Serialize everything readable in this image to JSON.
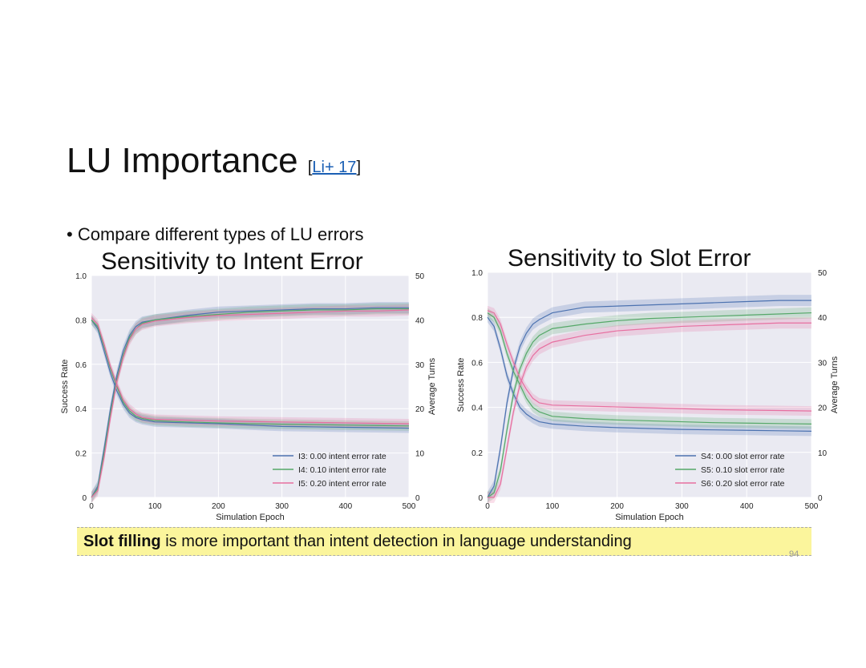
{
  "slide": {
    "title": "LU Importance",
    "cite_open": "[",
    "cite_link": "Li+ 17",
    "cite_close": "]",
    "bullet": "Compare different types of LU errors",
    "note_bold": "Slot filling",
    "note_rest": " is more important than intent detection in language understanding",
    "page_number": "94"
  },
  "chart_data": [
    {
      "type": "line",
      "title": "Sensitivity to Intent Error",
      "xlabel": "Simulation Epoch",
      "ylabel": "Success Rate",
      "y2label": "Average Turns",
      "xlim": [
        0,
        500
      ],
      "ylim": [
        0,
        1.0
      ],
      "y2lim": [
        0,
        50
      ],
      "xticks": [
        "0",
        "100",
        "200",
        "300",
        "400",
        "500"
      ],
      "yticks": [
        "0",
        "0.2",
        "0.4",
        "0.6",
        "0.8",
        "1.0"
      ],
      "y2ticks": [
        "0",
        "10",
        "20",
        "30",
        "40",
        "50"
      ],
      "grid": true,
      "legend_position": "lower-right",
      "series": [
        {
          "name": "I3: 0.00 intent error rate",
          "color": "#4c72b0",
          "success": [
            [
              0,
              0.0
            ],
            [
              10,
              0.05
            ],
            [
              20,
              0.22
            ],
            [
              30,
              0.4
            ],
            [
              40,
              0.55
            ],
            [
              50,
              0.66
            ],
            [
              60,
              0.73
            ],
            [
              70,
              0.77
            ],
            [
              80,
              0.79
            ],
            [
              100,
              0.8
            ],
            [
              150,
              0.82
            ],
            [
              200,
              0.835
            ],
            [
              250,
              0.84
            ],
            [
              300,
              0.845
            ],
            [
              350,
              0.85
            ],
            [
              400,
              0.85
            ],
            [
              450,
              0.855
            ],
            [
              500,
              0.855
            ]
          ],
          "turns": [
            [
              0,
              40
            ],
            [
              10,
              38
            ],
            [
              20,
              33
            ],
            [
              30,
              28
            ],
            [
              40,
              24
            ],
            [
              50,
              21
            ],
            [
              60,
              19
            ],
            [
              70,
              18
            ],
            [
              80,
              17.5
            ],
            [
              100,
              17
            ],
            [
              150,
              16.8
            ],
            [
              200,
              16.6
            ],
            [
              250,
              16.3
            ],
            [
              300,
              16
            ],
            [
              350,
              15.9
            ],
            [
              400,
              15.8
            ],
            [
              450,
              15.7
            ],
            [
              500,
              15.6
            ]
          ]
        },
        {
          "name": "I4: 0.10 intent error rate",
          "color": "#55a868",
          "success": [
            [
              0,
              0.0
            ],
            [
              10,
              0.04
            ],
            [
              20,
              0.2
            ],
            [
              30,
              0.38
            ],
            [
              40,
              0.53
            ],
            [
              50,
              0.64
            ],
            [
              60,
              0.72
            ],
            [
              70,
              0.76
            ],
            [
              80,
              0.785
            ],
            [
              100,
              0.8
            ],
            [
              150,
              0.815
            ],
            [
              200,
              0.825
            ],
            [
              250,
              0.835
            ],
            [
              300,
              0.84
            ],
            [
              350,
              0.845
            ],
            [
              400,
              0.845
            ],
            [
              450,
              0.85
            ],
            [
              500,
              0.85
            ]
          ],
          "turns": [
            [
              0,
              40
            ],
            [
              10,
              38.5
            ],
            [
              20,
              34
            ],
            [
              30,
              29
            ],
            [
              40,
              25
            ],
            [
              50,
              21.5
            ],
            [
              60,
              19.5
            ],
            [
              70,
              18.3
            ],
            [
              80,
              17.8
            ],
            [
              100,
              17.3
            ],
            [
              150,
              17
            ],
            [
              200,
              16.8
            ],
            [
              250,
              16.6
            ],
            [
              300,
              16.5
            ],
            [
              350,
              16.4
            ],
            [
              400,
              16.3
            ],
            [
              450,
              16.2
            ],
            [
              500,
              16.1
            ]
          ]
        },
        {
          "name": "I5: 0.20 intent error rate",
          "color": "#e76fa0",
          "success": [
            [
              0,
              0.0
            ],
            [
              10,
              0.03
            ],
            [
              20,
              0.18
            ],
            [
              30,
              0.36
            ],
            [
              40,
              0.52
            ],
            [
              50,
              0.63
            ],
            [
              60,
              0.71
            ],
            [
              70,
              0.76
            ],
            [
              80,
              0.78
            ],
            [
              100,
              0.795
            ],
            [
              150,
              0.81
            ],
            [
              200,
              0.82
            ],
            [
              250,
              0.825
            ],
            [
              300,
              0.83
            ],
            [
              350,
              0.835
            ],
            [
              400,
              0.84
            ],
            [
              450,
              0.84
            ],
            [
              500,
              0.845
            ]
          ],
          "turns": [
            [
              0,
              40.5
            ],
            [
              10,
              39
            ],
            [
              20,
              34.5
            ],
            [
              30,
              29.5
            ],
            [
              40,
              25.5
            ],
            [
              50,
              22
            ],
            [
              60,
              20
            ],
            [
              70,
              18.8
            ],
            [
              80,
              18
            ],
            [
              100,
              17.6
            ],
            [
              150,
              17.4
            ],
            [
              200,
              17.2
            ],
            [
              250,
              17.1
            ],
            [
              300,
              17
            ],
            [
              350,
              16.9
            ],
            [
              400,
              16.8
            ],
            [
              450,
              16.7
            ],
            [
              500,
              16.6
            ]
          ]
        }
      ]
    },
    {
      "type": "line",
      "title": "Sensitivity to Slot Error",
      "xlabel": "Simulation Epoch",
      "ylabel": "Success Rate",
      "y2label": "Average Turns",
      "xlim": [
        0,
        500
      ],
      "ylim": [
        0,
        1.0
      ],
      "y2lim": [
        0,
        50
      ],
      "xticks": [
        "0",
        "100",
        "200",
        "300",
        "400",
        "500"
      ],
      "yticks": [
        "0",
        "0.2",
        "0.4",
        "0.6",
        "0.8",
        "1.0"
      ],
      "y2ticks": [
        "0",
        "10",
        "20",
        "30",
        "40",
        "50"
      ],
      "grid": true,
      "legend_position": "lower-right",
      "series": [
        {
          "name": "S4: 0.00 slot error rate",
          "color": "#4c72b0",
          "success": [
            [
              0,
              0.0
            ],
            [
              10,
              0.05
            ],
            [
              20,
              0.22
            ],
            [
              30,
              0.42
            ],
            [
              40,
              0.57
            ],
            [
              50,
              0.67
            ],
            [
              60,
              0.73
            ],
            [
              70,
              0.77
            ],
            [
              80,
              0.79
            ],
            [
              100,
              0.82
            ],
            [
              150,
              0.845
            ],
            [
              200,
              0.85
            ],
            [
              250,
              0.855
            ],
            [
              300,
              0.86
            ],
            [
              350,
              0.865
            ],
            [
              400,
              0.87
            ],
            [
              450,
              0.875
            ],
            [
              500,
              0.875
            ]
          ],
          "turns": [
            [
              0,
              40
            ],
            [
              10,
              38
            ],
            [
              20,
              33
            ],
            [
              30,
              27
            ],
            [
              40,
              23
            ],
            [
              50,
              20
            ],
            [
              60,
              18.5
            ],
            [
              70,
              17.5
            ],
            [
              80,
              16.8
            ],
            [
              100,
              16.3
            ],
            [
              150,
              15.8
            ],
            [
              200,
              15.5
            ],
            [
              250,
              15.3
            ],
            [
              300,
              15.1
            ],
            [
              350,
              15
            ],
            [
              400,
              14.9
            ],
            [
              450,
              14.8
            ],
            [
              500,
              14.7
            ]
          ]
        },
        {
          "name": "S5: 0.10 slot error rate",
          "color": "#55a868",
          "success": [
            [
              0,
              0.0
            ],
            [
              10,
              0.02
            ],
            [
              20,
              0.12
            ],
            [
              30,
              0.3
            ],
            [
              40,
              0.46
            ],
            [
              50,
              0.57
            ],
            [
              60,
              0.64
            ],
            [
              70,
              0.69
            ],
            [
              80,
              0.72
            ],
            [
              100,
              0.75
            ],
            [
              150,
              0.77
            ],
            [
              200,
              0.785
            ],
            [
              250,
              0.795
            ],
            [
              300,
              0.8
            ],
            [
              350,
              0.805
            ],
            [
              400,
              0.81
            ],
            [
              450,
              0.815
            ],
            [
              500,
              0.82
            ]
          ],
          "turns": [
            [
              0,
              41
            ],
            [
              10,
              40
            ],
            [
              20,
              37
            ],
            [
              30,
              32
            ],
            [
              40,
              28
            ],
            [
              50,
              25
            ],
            [
              60,
              22
            ],
            [
              70,
              20
            ],
            [
              80,
              19
            ],
            [
              100,
              18
            ],
            [
              150,
              17.5
            ],
            [
              200,
              17.2
            ],
            [
              250,
              17
            ],
            [
              300,
              16.8
            ],
            [
              350,
              16.6
            ],
            [
              400,
              16.5
            ],
            [
              450,
              16.4
            ],
            [
              500,
              16.3
            ]
          ]
        },
        {
          "name": "S6: 0.20 slot error rate",
          "color": "#e76fa0",
          "success": [
            [
              0,
              0.0
            ],
            [
              10,
              0.0
            ],
            [
              20,
              0.06
            ],
            [
              30,
              0.22
            ],
            [
              40,
              0.38
            ],
            [
              50,
              0.5
            ],
            [
              60,
              0.58
            ],
            [
              70,
              0.63
            ],
            [
              80,
              0.66
            ],
            [
              100,
              0.69
            ],
            [
              150,
              0.72
            ],
            [
              200,
              0.74
            ],
            [
              250,
              0.75
            ],
            [
              300,
              0.76
            ],
            [
              350,
              0.765
            ],
            [
              400,
              0.77
            ],
            [
              450,
              0.775
            ],
            [
              500,
              0.775
            ]
          ],
          "turns": [
            [
              0,
              41.5
            ],
            [
              10,
              41
            ],
            [
              20,
              38.5
            ],
            [
              30,
              34
            ],
            [
              40,
              30
            ],
            [
              50,
              26.5
            ],
            [
              60,
              24
            ],
            [
              70,
              22
            ],
            [
              80,
              21
            ],
            [
              100,
              20.5
            ],
            [
              150,
              20.3
            ],
            [
              200,
              20.1
            ],
            [
              250,
              19.9
            ],
            [
              300,
              19.7
            ],
            [
              350,
              19.5
            ],
            [
              400,
              19.4
            ],
            [
              450,
              19.3
            ],
            [
              500,
              19.2
            ]
          ]
        }
      ]
    }
  ]
}
